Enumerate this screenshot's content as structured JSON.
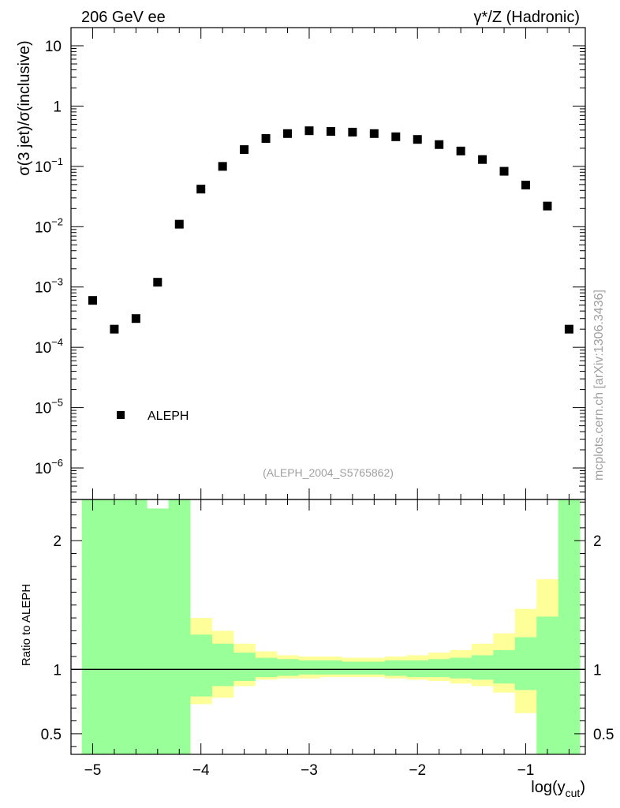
{
  "header": {
    "energy_label": "206 GeV ee",
    "process_label": "γ*/Z (Hadronic)",
    "side_label": "mcplots.cern.ch [arXiv:1306.3436]",
    "analysis_id": "(ALEPH_2004_S5765862)"
  },
  "chart_data": [
    {
      "type": "scatter",
      "panel": "main",
      "ylabel": "σ(3 jet)/σ(inclusive)",
      "xlabel": "",
      "xlim": [
        -5.2,
        -0.45
      ],
      "ylim": [
        3e-07,
        20
      ],
      "yscale": "log",
      "x_ticks": [
        -5,
        -4,
        -3,
        -2,
        -1
      ],
      "y_ticks": [
        {
          "value": 1e-06,
          "base": "10",
          "exp": "−6"
        },
        {
          "value": 1e-05,
          "base": "10",
          "exp": "−5"
        },
        {
          "value": 0.0001,
          "base": "10",
          "exp": "−4"
        },
        {
          "value": 0.001,
          "base": "10",
          "exp": "−3"
        },
        {
          "value": 0.01,
          "base": "10",
          "exp": "−2"
        },
        {
          "value": 0.1,
          "base": "10",
          "exp": "−1"
        },
        {
          "value": 1,
          "base": "1",
          "exp": ""
        },
        {
          "value": 10,
          "base": "10",
          "exp": ""
        }
      ],
      "legend": {
        "placement": "bottom-left",
        "entries": [
          "ALEPH"
        ]
      },
      "series": [
        {
          "name": "ALEPH",
          "marker": "square",
          "color": "#000000",
          "x": [
            -5.0,
            -4.8,
            -4.6,
            -4.4,
            -4.2,
            -4.0,
            -3.8,
            -3.6,
            -3.4,
            -3.2,
            -3.0,
            -2.8,
            -2.6,
            -2.4,
            -2.2,
            -2.0,
            -1.8,
            -1.6,
            -1.4,
            -1.2,
            -1.0,
            -0.8,
            -0.6
          ],
          "y": [
            0.0006,
            0.0002,
            0.0003,
            0.0012,
            0.011,
            0.042,
            0.1,
            0.19,
            0.29,
            0.35,
            0.39,
            0.38,
            0.37,
            0.35,
            0.31,
            0.28,
            0.23,
            0.18,
            0.13,
            0.083,
            0.049,
            0.022,
            0.0002
          ]
        }
      ]
    },
    {
      "type": "area",
      "panel": "ratio",
      "ylabel": "Ratio to ALEPH",
      "xlabel": "log(y",
      "xlabel_sub": "cut",
      "xlabel_close": ")",
      "xlim": [
        -5.2,
        -0.45
      ],
      "ylim": [
        0.34,
        2.32
      ],
      "x_ticks": [
        -5,
        -4,
        -3,
        -2,
        -1
      ],
      "y_ticks": [
        0.5,
        1,
        2
      ],
      "reference_line": 1,
      "bins": [
        -5.1,
        -4.9,
        -4.7,
        -4.5,
        -4.3,
        -4.1,
        -3.9,
        -3.7,
        -3.5,
        -3.3,
        -3.1,
        -2.9,
        -2.7,
        -2.5,
        -2.3,
        -2.1,
        -1.9,
        -1.7,
        -1.5,
        -1.3,
        -1.1,
        -0.9,
        -0.7,
        -0.5
      ],
      "band_outer": {
        "color": "#ffff99",
        "lo": [
          0.34,
          0.34,
          0.34,
          0.34,
          0.5,
          0.73,
          0.78,
          0.87,
          0.92,
          0.93,
          0.93,
          0.94,
          0.94,
          0.94,
          0.93,
          0.92,
          0.91,
          0.89,
          0.87,
          0.82,
          0.66,
          0.34,
          0.34
        ],
        "hi": [
          2.32,
          2.32,
          2.32,
          2.25,
          1.58,
          1.4,
          1.3,
          1.2,
          1.14,
          1.11,
          1.1,
          1.1,
          1.09,
          1.09,
          1.1,
          1.11,
          1.13,
          1.15,
          1.2,
          1.28,
          1.47,
          1.7,
          2.32
        ]
      },
      "band_inner": {
        "color": "#99ff99",
        "lo": [
          0.34,
          0.34,
          0.34,
          0.34,
          0.34,
          0.79,
          0.87,
          0.91,
          0.94,
          0.95,
          0.96,
          0.96,
          0.96,
          0.96,
          0.95,
          0.94,
          0.94,
          0.93,
          0.92,
          0.89,
          0.84,
          0.34,
          0.34
        ],
        "hi": [
          2.32,
          2.32,
          2.32,
          2.25,
          2.32,
          1.27,
          1.2,
          1.13,
          1.09,
          1.08,
          1.07,
          1.07,
          1.06,
          1.06,
          1.07,
          1.07,
          1.08,
          1.09,
          1.11,
          1.15,
          1.25,
          1.41,
          2.32
        ]
      }
    }
  ]
}
